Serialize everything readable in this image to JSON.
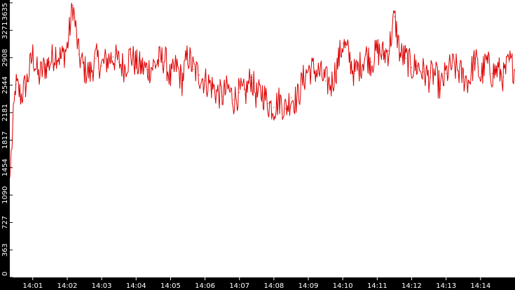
{
  "chart_data": {
    "type": "line",
    "title": "",
    "xlabel": "",
    "ylabel": "",
    "ylim": [
      0,
      3635
    ],
    "xlim": [
      "14:00:20",
      "14:15:00"
    ],
    "grid": false,
    "legend": "none",
    "y_ticks": [
      0,
      363,
      727,
      1090,
      1454,
      1817,
      2181,
      2544,
      2908,
      3271,
      3635
    ],
    "x_ticks": [
      "14:01",
      "14:02",
      "14:03",
      "14:04",
      "14:05",
      "14:06",
      "14:07",
      "14:08",
      "14:09",
      "14:10",
      "14:11",
      "14:12",
      "14:13",
      "14:14"
    ],
    "colors": {
      "series": "#dd0000",
      "axis_bar": "#000000",
      "axis_text": "#ffffff",
      "background": "#ffffff"
    },
    "series": [
      {
        "x": [
          "14:00:20",
          "14:00:30",
          "14:00:40",
          "14:00:50",
          "14:01:00",
          "14:01:10",
          "14:01:20",
          "14:01:30",
          "14:01:40",
          "14:01:50",
          "14:02:00",
          "14:02:10",
          "14:02:20",
          "14:02:30",
          "14:02:40",
          "14:02:50",
          "14:03:00",
          "14:03:10",
          "14:03:20",
          "14:03:30",
          "14:03:40",
          "14:03:50",
          "14:04:00",
          "14:04:10",
          "14:04:20",
          "14:04:30",
          "14:04:40",
          "14:04:50",
          "14:05:00",
          "14:05:10",
          "14:05:20",
          "14:05:30",
          "14:05:40",
          "14:05:50",
          "14:06:00",
          "14:06:10",
          "14:06:20",
          "14:06:30",
          "14:06:40",
          "14:06:50",
          "14:07:00",
          "14:07:10",
          "14:07:20",
          "14:07:30",
          "14:07:40",
          "14:07:50",
          "14:08:00",
          "14:08:10",
          "14:08:20",
          "14:08:30",
          "14:08:40",
          "14:08:50",
          "14:09:00",
          "14:09:10",
          "14:09:20",
          "14:09:30",
          "14:09:40",
          "14:09:50",
          "14:10:00",
          "14:10:10",
          "14:10:20",
          "14:10:30",
          "14:10:40",
          "14:10:50",
          "14:11:00",
          "14:11:10",
          "14:11:20",
          "14:11:30",
          "14:11:40",
          "14:11:50",
          "14:12:00",
          "14:12:10",
          "14:12:20",
          "14:12:30",
          "14:12:40",
          "14:12:50",
          "14:13:00",
          "14:13:10",
          "14:13:20",
          "14:13:30",
          "14:13:40",
          "14:13:50",
          "14:14:00",
          "14:14:10",
          "14:14:20",
          "14:14:30",
          "14:14:40",
          "14:14:50",
          "14:15:00"
        ],
        "values": [
          1320,
          2550,
          2400,
          2600,
          2950,
          2650,
          2780,
          2850,
          2980,
          2900,
          3050,
          3600,
          2950,
          2750,
          2700,
          2900,
          2800,
          2880,
          2920,
          2850,
          2780,
          2950,
          2820,
          2780,
          2750,
          2800,
          2870,
          2900,
          2620,
          2800,
          2600,
          2950,
          2750,
          2680,
          2600,
          2550,
          2450,
          2400,
          2500,
          2350,
          2450,
          2420,
          2650,
          2400,
          2450,
          2300,
          2250,
          2350,
          2230,
          2380,
          2350,
          2600,
          2750,
          2750,
          2700,
          2600,
          2550,
          2800,
          3100,
          2950,
          2700,
          2800,
          2950,
          2850,
          3000,
          2950,
          3000,
          3450,
          2950,
          2900,
          2780,
          2800,
          2720,
          2650,
          2700,
          2500,
          2700,
          2800,
          2750,
          2650,
          2600,
          2900,
          2650,
          2850,
          2700,
          2750,
          2650,
          2850,
          2750
        ]
      }
    ]
  }
}
